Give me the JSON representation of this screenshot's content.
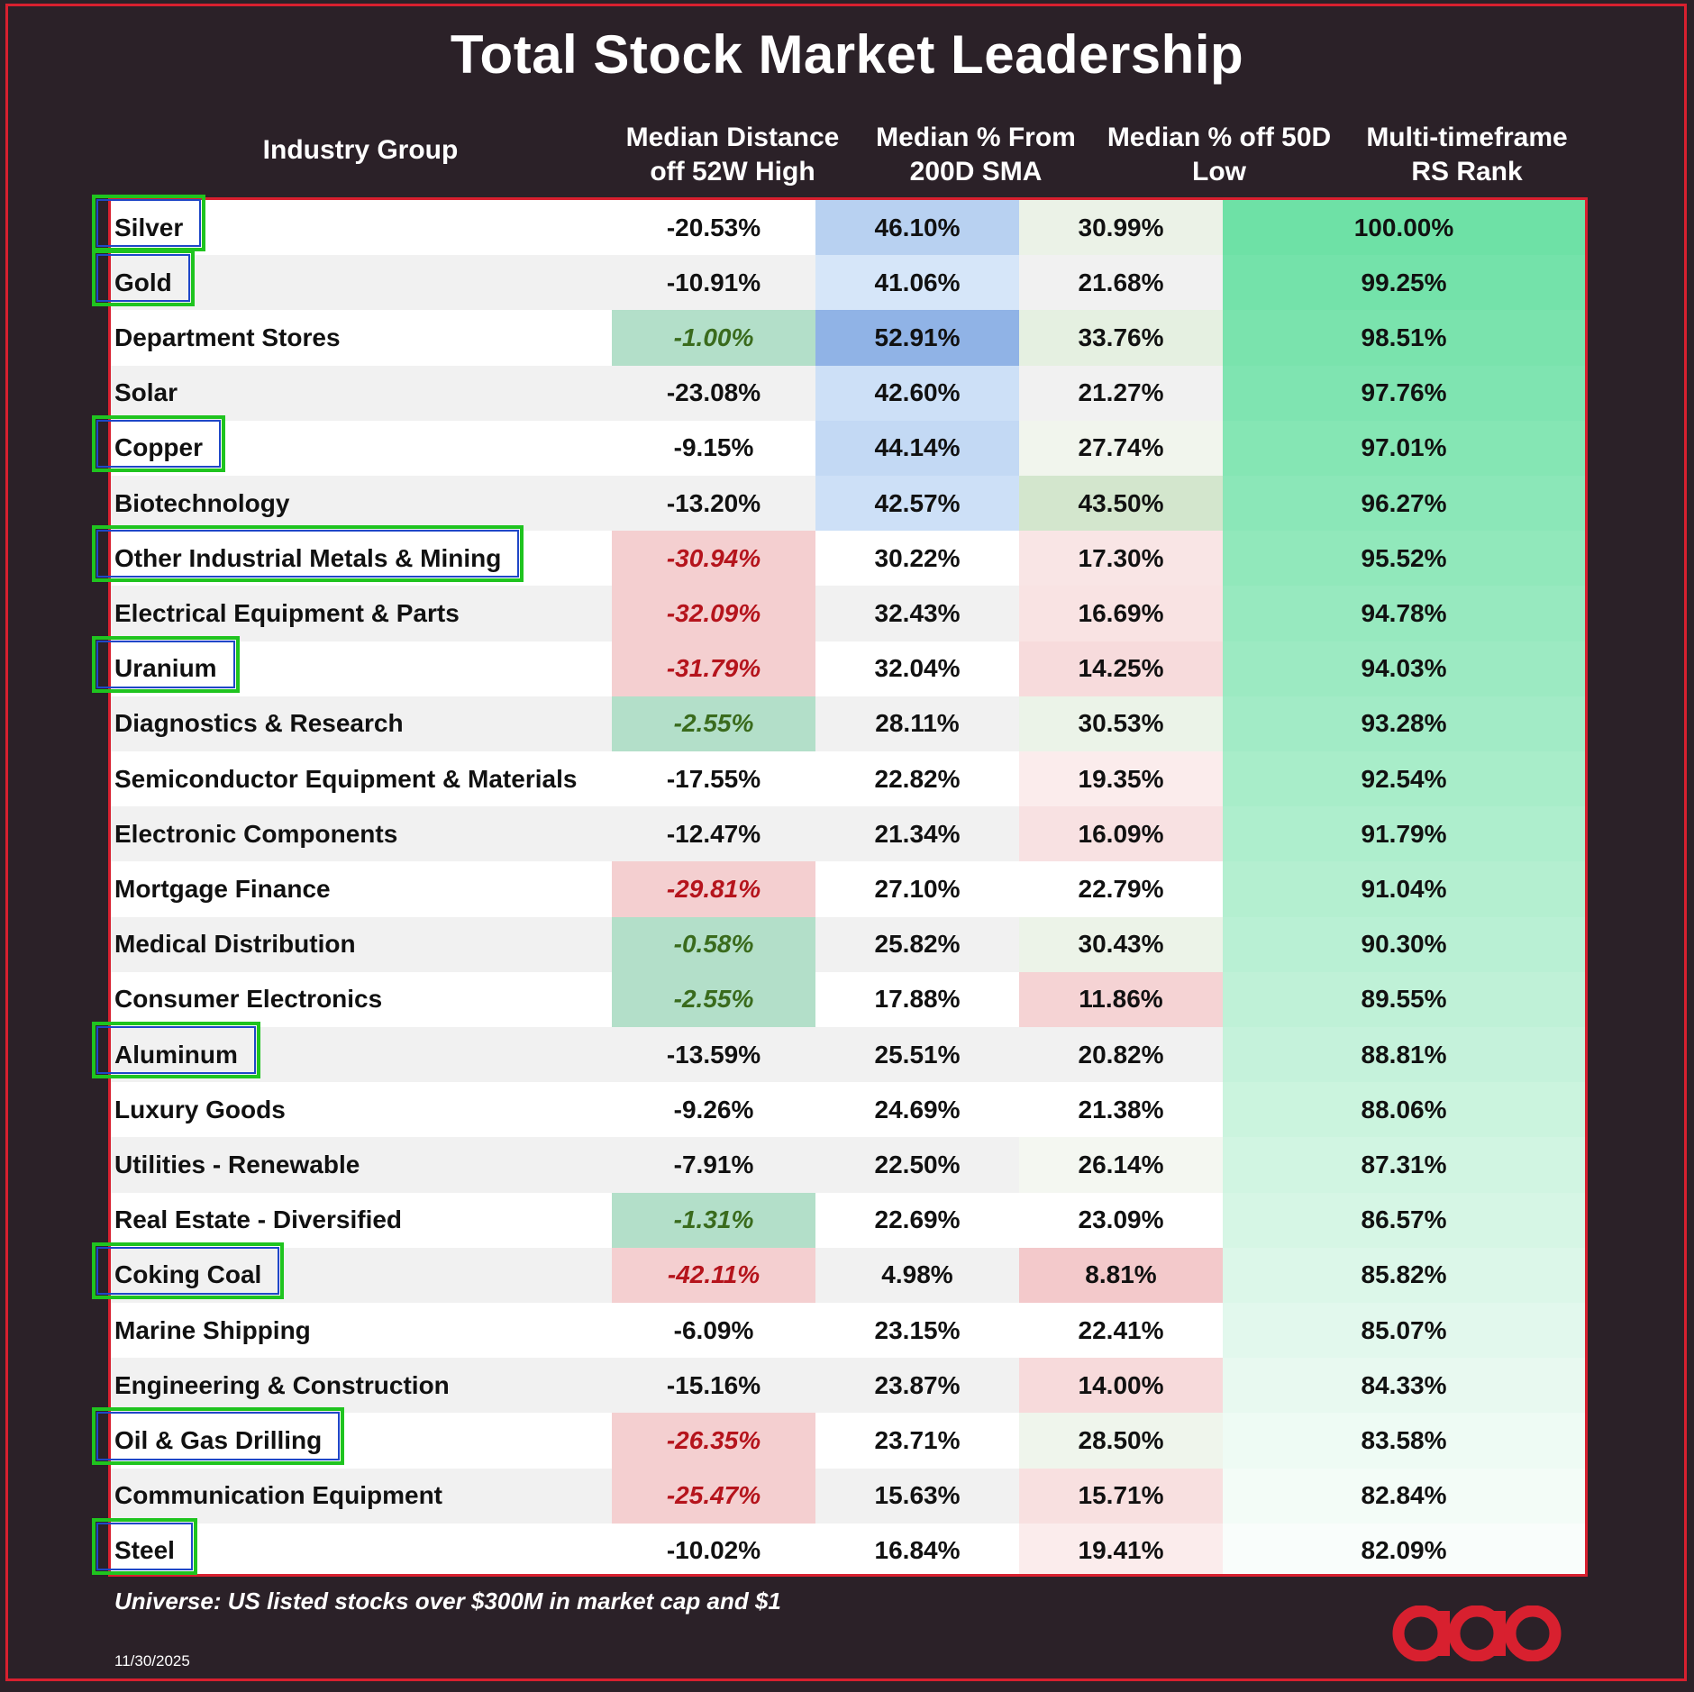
{
  "title": "Total Stock Market Leadership",
  "headers": {
    "group": "Industry Group",
    "col1_line1": "Median Distance",
    "col1_line2": "off 52W High",
    "col2_line1": "Median % From",
    "col2_line2": "200D SMA",
    "col3_line1": "Median % off 50D",
    "col3_line2": "Low",
    "col4_line1": "Multi-timeframe",
    "col4_line2": "RS Rank"
  },
  "footnote": "Universe: US listed stocks over $300M in market cap and $1",
  "date": "11/30/2025",
  "colors": {
    "background": "#2b2128",
    "border_red": "#d8202f",
    "highlight_green": "#1fc41f",
    "highlight_blue": "#1f47c8",
    "negative_text": "#b5141c",
    "positive_text": "#3a6b1d",
    "green_cell": "#b3dfc9",
    "red_cell": "#f4cfd0"
  },
  "chart_data": {
    "type": "table",
    "columns": [
      "Industry Group",
      "Median Distance off 52W High",
      "Median % From 200D SMA",
      "Median % off 50D Low",
      "Multi-timeframe RS Rank"
    ],
    "rows": [
      {
        "group": "Silver",
        "high52": "-20.53%",
        "sma200": "46.10%",
        "low50": "30.99%",
        "rs": "100.00%",
        "highlighted": true
      },
      {
        "group": "Gold",
        "high52": "-10.91%",
        "sma200": "41.06%",
        "low50": "21.68%",
        "rs": "99.25%",
        "highlighted": true
      },
      {
        "group": "Department Stores",
        "high52": "-1.00%",
        "sma200": "52.91%",
        "low50": "33.76%",
        "rs": "98.51%",
        "highlighted": false
      },
      {
        "group": "Solar",
        "high52": "-23.08%",
        "sma200": "42.60%",
        "low50": "21.27%",
        "rs": "97.76%",
        "highlighted": false
      },
      {
        "group": "Copper",
        "high52": "-9.15%",
        "sma200": "44.14%",
        "low50": "27.74%",
        "rs": "97.01%",
        "highlighted": true
      },
      {
        "group": "Biotechnology",
        "high52": "-13.20%",
        "sma200": "42.57%",
        "low50": "43.50%",
        "rs": "96.27%",
        "highlighted": false
      },
      {
        "group": "Other Industrial Metals & Mining",
        "high52": "-30.94%",
        "sma200": "30.22%",
        "low50": "17.30%",
        "rs": "95.52%",
        "highlighted": true
      },
      {
        "group": "Electrical Equipment & Parts",
        "high52": "-32.09%",
        "sma200": "32.43%",
        "low50": "16.69%",
        "rs": "94.78%",
        "highlighted": false
      },
      {
        "group": "Uranium",
        "high52": "-31.79%",
        "sma200": "32.04%",
        "low50": "14.25%",
        "rs": "94.03%",
        "highlighted": true
      },
      {
        "group": "Diagnostics & Research",
        "high52": "-2.55%",
        "sma200": "28.11%",
        "low50": "30.53%",
        "rs": "93.28%",
        "highlighted": false
      },
      {
        "group": "Semiconductor Equipment & Materials",
        "high52": "-17.55%",
        "sma200": "22.82%",
        "low50": "19.35%",
        "rs": "92.54%",
        "highlighted": false
      },
      {
        "group": "Electronic Components",
        "high52": "-12.47%",
        "sma200": "21.34%",
        "low50": "16.09%",
        "rs": "91.79%",
        "highlighted": false
      },
      {
        "group": "Mortgage Finance",
        "high52": "-29.81%",
        "sma200": "27.10%",
        "low50": "22.79%",
        "rs": "91.04%",
        "highlighted": false
      },
      {
        "group": "Medical Distribution",
        "high52": "-0.58%",
        "sma200": "25.82%",
        "low50": "30.43%",
        "rs": "90.30%",
        "highlighted": false
      },
      {
        "group": "Consumer Electronics",
        "high52": "-2.55%",
        "sma200": "17.88%",
        "low50": "11.86%",
        "rs": "89.55%",
        "highlighted": false
      },
      {
        "group": "Aluminum",
        "high52": "-13.59%",
        "sma200": "25.51%",
        "low50": "20.82%",
        "rs": "88.81%",
        "highlighted": true
      },
      {
        "group": "Luxury Goods",
        "high52": "-9.26%",
        "sma200": "24.69%",
        "low50": "21.38%",
        "rs": "88.06%",
        "highlighted": false
      },
      {
        "group": "Utilities - Renewable",
        "high52": "-7.91%",
        "sma200": "22.50%",
        "low50": "26.14%",
        "rs": "87.31%",
        "highlighted": false
      },
      {
        "group": "Real Estate - Diversified",
        "high52": "-1.31%",
        "sma200": "22.69%",
        "low50": "23.09%",
        "rs": "86.57%",
        "highlighted": false
      },
      {
        "group": "Coking Coal",
        "high52": "-42.11%",
        "sma200": "4.98%",
        "low50": "8.81%",
        "rs": "85.82%",
        "highlighted": true
      },
      {
        "group": "Marine Shipping",
        "high52": "-6.09%",
        "sma200": "23.15%",
        "low50": "22.41%",
        "rs": "85.07%",
        "highlighted": false
      },
      {
        "group": "Engineering & Construction",
        "high52": "-15.16%",
        "sma200": "23.87%",
        "low50": "14.00%",
        "rs": "84.33%",
        "highlighted": false
      },
      {
        "group": "Oil & Gas Drilling",
        "high52": "-26.35%",
        "sma200": "23.71%",
        "low50": "28.50%",
        "rs": "83.58%",
        "highlighted": true
      },
      {
        "group": "Communication Equipment",
        "high52": "-25.47%",
        "sma200": "15.63%",
        "low50": "15.71%",
        "rs": "82.84%",
        "highlighted": false
      },
      {
        "group": "Steel",
        "high52": "-10.02%",
        "sma200": "16.84%",
        "low50": "19.41%",
        "rs": "82.09%",
        "highlighted": true
      }
    ]
  }
}
